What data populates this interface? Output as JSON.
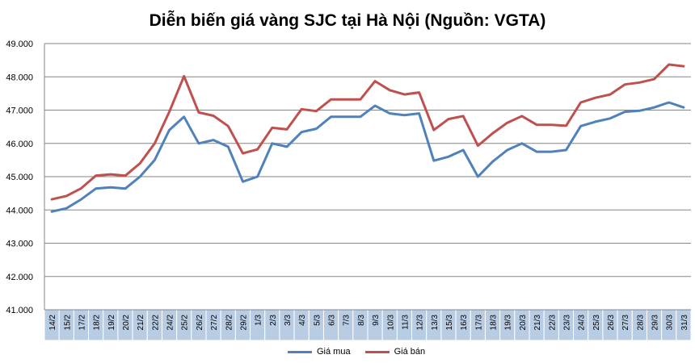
{
  "chart_data": {
    "type": "line",
    "title": "Diễn biến giá vàng SJC tại Hà Nội (Nguồn: VGTA)",
    "xlabel": "",
    "ylabel": "",
    "ylim": [
      41000,
      49000
    ],
    "yticks": [
      41000,
      42000,
      43000,
      44000,
      45000,
      46000,
      47000,
      48000,
      49000
    ],
    "ytick_labels": [
      "41.000",
      "42.000",
      "43.000",
      "44.000",
      "45.000",
      "46.000",
      "47.000",
      "48.000",
      "49.000"
    ],
    "grid": true,
    "legend_position": "bottom",
    "categories": [
      "14/2",
      "15/2",
      "17/2",
      "18/2",
      "19/2",
      "20/2",
      "21/2",
      "22/2",
      "24/2",
      "25/2",
      "26/2",
      "27/2",
      "28/2",
      "29/2",
      "1/3",
      "2/3",
      "3/3",
      "4/3",
      "5/3",
      "6/3",
      "7/3",
      "8/3",
      "9/3",
      "10/3",
      "11/3",
      "12/3",
      "13/3",
      "15/3",
      "16/3",
      "17/3",
      "18/3",
      "19/3",
      "20/3",
      "21/3",
      "22/3",
      "23/3",
      "24/3",
      "25/3",
      "26/3",
      "27/3",
      "28/3",
      "29/3",
      "30/3",
      "31/3"
    ],
    "series": [
      {
        "name": "Giá mua",
        "color": "#4F81BD",
        "values": [
          43950,
          44050,
          44320,
          44640,
          44680,
          44640,
          45000,
          45500,
          46400,
          46800,
          46000,
          46100,
          45900,
          44850,
          45000,
          46000,
          45900,
          46340,
          46440,
          46800,
          46800,
          46800,
          47130,
          46900,
          46850,
          46900,
          45480,
          45600,
          45800,
          45000,
          45450,
          45800,
          46000,
          45750,
          45750,
          45800,
          46520,
          46650,
          46750,
          46950,
          46980,
          47080,
          47230,
          47080
        ]
      },
      {
        "name": "Giá bán",
        "color": "#C0504D",
        "values": [
          44320,
          44420,
          44650,
          45030,
          45070,
          45030,
          45400,
          46000,
          46950,
          48020,
          46930,
          46830,
          46520,
          45700,
          45820,
          46470,
          46420,
          47030,
          46970,
          47320,
          47320,
          47320,
          47870,
          47600,
          47470,
          47530,
          46400,
          46730,
          46820,
          45930,
          46300,
          46620,
          46820,
          46560,
          46560,
          46530,
          47230,
          47370,
          47470,
          47770,
          47830,
          47930,
          48370,
          48320
        ]
      }
    ]
  }
}
